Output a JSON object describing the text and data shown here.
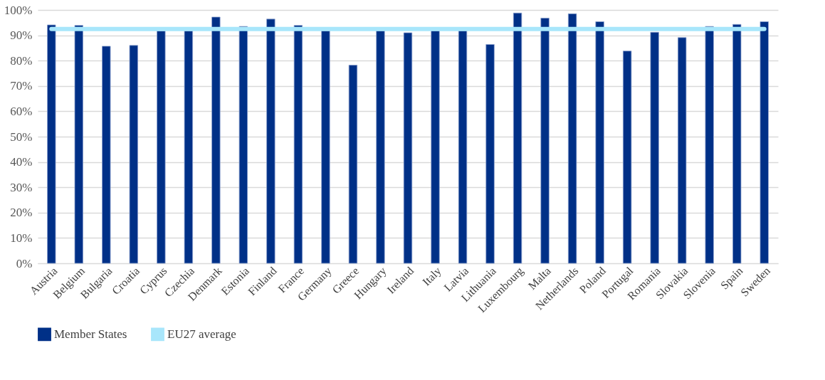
{
  "chart_data": {
    "type": "bar",
    "categories": [
      "Austria",
      "Belgium",
      "Bulgaria",
      "Croatia",
      "Cyprus",
      "Czechia",
      "Denmark",
      "Estonia",
      "Finland",
      "France",
      "Germany",
      "Greece",
      "Hungary",
      "Ireland",
      "Italy",
      "Latvia",
      "Lithuania",
      "Luxembourg",
      "Malta",
      "Netherlands",
      "Poland",
      "Portugal",
      "Romania",
      "Slovakia",
      "Slovenia",
      "Spain",
      "Sweden"
    ],
    "series": [
      {
        "name": "Member States",
        "color": "#003087",
        "values": [
          94.1,
          93.9,
          85.7,
          86.0,
          91.7,
          91.7,
          97.2,
          93.5,
          96.4,
          93.9,
          91.8,
          78.2,
          91.8,
          91.0,
          91.8,
          91.8,
          86.4,
          98.8,
          96.8,
          98.5,
          95.4,
          83.8,
          91.2,
          89.1,
          93.5,
          94.3,
          95.4
        ]
      },
      {
        "name": "EU27 average",
        "type": "line",
        "color": "#a8e6fb",
        "values": [
          92.5,
          92.5,
          92.5,
          92.5,
          92.5,
          92.5,
          92.5,
          92.5,
          92.5,
          92.5,
          92.5,
          92.5,
          92.5,
          92.5,
          92.5,
          92.5,
          92.5,
          92.5,
          92.5,
          92.5,
          92.5,
          92.5,
          92.5,
          92.5,
          92.5,
          92.5,
          92.5
        ]
      }
    ],
    "ylim": [
      0,
      100
    ],
    "yticks": [
      {
        "value": 0,
        "label": "0%"
      },
      {
        "value": 10,
        "label": "10%"
      },
      {
        "value": 20,
        "label": "20%"
      },
      {
        "value": 30,
        "label": "30%"
      },
      {
        "value": 40,
        "label": "40%"
      },
      {
        "value": 50,
        "label": "50%"
      },
      {
        "value": 60,
        "label": "60%"
      },
      {
        "value": 70,
        "label": "70%"
      },
      {
        "value": 80,
        "label": "80%"
      },
      {
        "value": 90,
        "label": "90%"
      },
      {
        "value": 100,
        "label": "100%"
      }
    ],
    "grid": "y",
    "legend": "bottom"
  }
}
